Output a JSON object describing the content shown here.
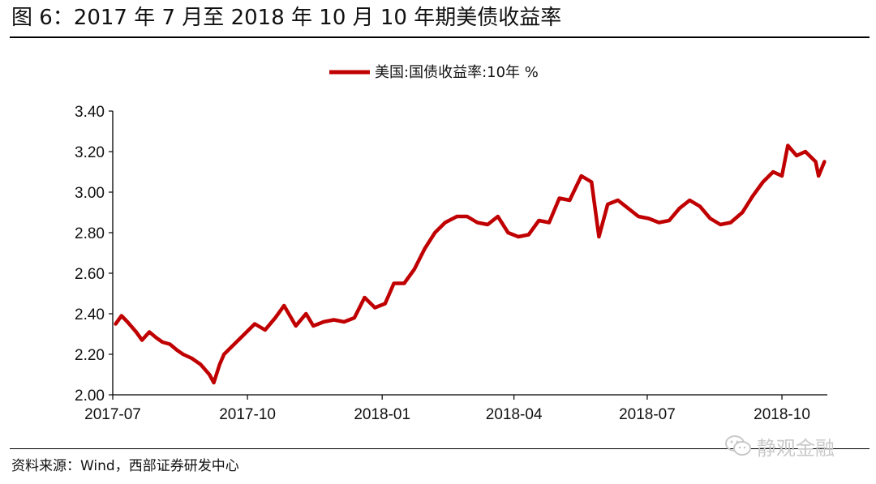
{
  "figure": {
    "title": "图 6：2017 年 7 月至 2018 年 10 月 10 年期美债收益率",
    "source": "资料来源：Wind，西部证券研发中心",
    "watermark": "静观金融",
    "watermark_icon": "wechat-icon"
  },
  "chart_data": {
    "type": "line",
    "title": "",
    "xlabel": "",
    "ylabel": "",
    "ylim": [
      2.0,
      3.4
    ],
    "yticks": [
      "2.00",
      "2.20",
      "2.40",
      "2.60",
      "2.80",
      "3.00",
      "3.20",
      "3.40"
    ],
    "xticks": [
      "2017-07",
      "2017-10",
      "2018-01",
      "2018-04",
      "2018-07",
      "2018-10"
    ],
    "grid": false,
    "legend_position": "top-center",
    "line_color": "#c00000",
    "series": [
      {
        "name": "美国:国债收益率:10年 %",
        "x": [
          "2017-07-03",
          "2017-07-07",
          "2017-07-11",
          "2017-07-17",
          "2017-07-21",
          "2017-07-26",
          "2017-07-31",
          "2017-08-04",
          "2017-08-09",
          "2017-08-14",
          "2017-08-18",
          "2017-08-24",
          "2017-08-30",
          "2017-09-05",
          "2017-09-08",
          "2017-09-12",
          "2017-09-15",
          "2017-09-22",
          "2017-09-29",
          "2017-10-06",
          "2017-10-13",
          "2017-10-20",
          "2017-10-26",
          "2017-11-03",
          "2017-11-10",
          "2017-11-15",
          "2017-11-22",
          "2017-11-29",
          "2017-12-06",
          "2017-12-13",
          "2017-12-20",
          "2017-12-27",
          "2018-01-03",
          "2018-01-09",
          "2018-01-16",
          "2018-01-23",
          "2018-01-30",
          "2018-02-06",
          "2018-02-13",
          "2018-02-21",
          "2018-02-28",
          "2018-03-07",
          "2018-03-14",
          "2018-03-21",
          "2018-03-28",
          "2018-04-04",
          "2018-04-11",
          "2018-04-18",
          "2018-04-25",
          "2018-05-02",
          "2018-05-09",
          "2018-05-17",
          "2018-05-24",
          "2018-05-29",
          "2018-06-04",
          "2018-06-11",
          "2018-06-18",
          "2018-06-25",
          "2018-07-02",
          "2018-07-09",
          "2018-07-16",
          "2018-07-23",
          "2018-07-30",
          "2018-08-06",
          "2018-08-13",
          "2018-08-20",
          "2018-08-27",
          "2018-09-04",
          "2018-09-11",
          "2018-09-18",
          "2018-09-25",
          "2018-10-01",
          "2018-10-05",
          "2018-10-11",
          "2018-10-17",
          "2018-10-24",
          "2018-10-26",
          "2018-10-30"
        ],
        "values": [
          2.35,
          2.39,
          2.36,
          2.31,
          2.27,
          2.31,
          2.28,
          2.26,
          2.25,
          2.22,
          2.2,
          2.18,
          2.15,
          2.1,
          2.06,
          2.15,
          2.2,
          2.25,
          2.3,
          2.35,
          2.32,
          2.38,
          2.44,
          2.34,
          2.4,
          2.34,
          2.36,
          2.37,
          2.36,
          2.38,
          2.48,
          2.43,
          2.45,
          2.55,
          2.55,
          2.62,
          2.72,
          2.8,
          2.85,
          2.88,
          2.88,
          2.85,
          2.84,
          2.88,
          2.8,
          2.78,
          2.79,
          2.86,
          2.85,
          2.97,
          2.96,
          3.08,
          3.05,
          2.78,
          2.94,
          2.96,
          2.92,
          2.88,
          2.87,
          2.85,
          2.86,
          2.92,
          2.96,
          2.93,
          2.87,
          2.84,
          2.85,
          2.9,
          2.98,
          3.05,
          3.1,
          3.08,
          3.23,
          3.18,
          3.2,
          3.15,
          3.08,
          3.15
        ]
      }
    ]
  }
}
